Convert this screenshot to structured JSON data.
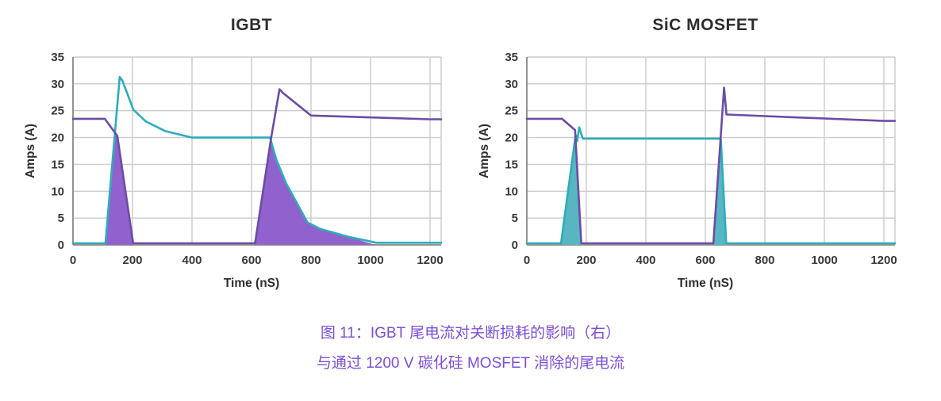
{
  "figure": {
    "background": "#FFFFFF",
    "caption": {
      "line1": "图 11：IGBT 尾电流对关断损耗的影响（右）",
      "line2": "与通过 1200 V 碳化硅 MOSFET 消除的尾电流",
      "color": "#7C4FD2"
    }
  },
  "style": {
    "grid_color": "#CBCBCB",
    "axis_color": "#939393",
    "tick_color": "#383838",
    "title_color": "#2D2D2D",
    "teal_line": "#2EACBA",
    "purple_line": "#6A4DA4",
    "teal_fill": "#58B6C2",
    "purple_fill": "#9162CD"
  },
  "chart_data": [
    {
      "type": "line",
      "title": "IGBT",
      "xlabel": "Time (nS)",
      "ylabel": "Amps (A)",
      "xlim": [
        0,
        1200
      ],
      "ylim": [
        0,
        35
      ],
      "xticks": [
        0,
        200,
        400,
        600,
        800,
        1000,
        1200
      ],
      "yticks": [
        0,
        5,
        10,
        15,
        20,
        25,
        30,
        35
      ],
      "grid": true,
      "legend": "none",
      "series": [
        {
          "name": "switch-current-teal",
          "color": "#2EACBA",
          "points": [
            [
              0,
              0.3
            ],
            [
              109,
              0.3
            ],
            [
              157,
              31.3
            ],
            [
              166,
              30.6
            ],
            [
              203,
              25.2
            ],
            [
              245,
              23
            ],
            [
              310,
              21.2
            ],
            [
              400,
              20
            ],
            [
              662,
              20
            ],
            [
              684,
              15.8
            ],
            [
              716,
              11.5
            ],
            [
              788,
              4.2
            ],
            [
              830,
              3
            ],
            [
              925,
              1.5
            ],
            [
              1020,
              0.4
            ],
            [
              1200,
              0.4
            ]
          ]
        },
        {
          "name": "complementary-current-purple",
          "color": "#6A4DA4",
          "points": [
            [
              0,
              23.5
            ],
            [
              107,
              23.5
            ],
            [
              149,
              20.3
            ],
            [
              202,
              0.3
            ],
            [
              612,
              0.3
            ],
            [
              666,
              20
            ],
            [
              694,
              29
            ],
            [
              706,
              28.3
            ],
            [
              800,
              24.1
            ],
            [
              1200,
              23.4
            ]
          ]
        }
      ],
      "areas": [
        {
          "name": "turn-on-overlap-loss",
          "color": "#9162CD",
          "points": [
            [
              111,
              0
            ],
            [
              140,
              20.3
            ],
            [
              149,
              20.3
            ],
            [
              202,
              0
            ]
          ]
        },
        {
          "name": "turn-off-tail-current-loss",
          "color": "#9162CD",
          "points": [
            [
              612,
              0
            ],
            [
              666,
              20
            ],
            [
              684,
              15.8
            ],
            [
              716,
              11.5
            ],
            [
              788,
              4.2
            ],
            [
              830,
              3
            ],
            [
              925,
              1.5
            ],
            [
              1015,
              0
            ]
          ]
        }
      ]
    },
    {
      "type": "line",
      "title": "SiC MOSFET",
      "xlabel": "Time (nS)",
      "ylabel": "Amps (A)",
      "xlim": [
        0,
        1200
      ],
      "ylim": [
        0,
        35
      ],
      "xticks": [
        0,
        200,
        400,
        600,
        800,
        1000,
        1200
      ],
      "yticks": [
        0,
        5,
        10,
        15,
        20,
        25,
        30,
        35
      ],
      "grid": true,
      "legend": "none",
      "series": [
        {
          "name": "switch-current-teal",
          "color": "#2EACBA",
          "points": [
            [
              0,
              0.3
            ],
            [
              115,
              0.3
            ],
            [
              164,
              20.5
            ],
            [
              169,
              19.3
            ],
            [
              176,
              21.9
            ],
            [
              188,
              19.8
            ],
            [
              644,
              19.8
            ],
            [
              652,
              19.8
            ],
            [
              670,
              0.3
            ],
            [
              1200,
              0.3
            ]
          ]
        },
        {
          "name": "complementary-current-purple",
          "color": "#6A4DA4",
          "points": [
            [
              0,
              23.5
            ],
            [
              118,
              23.5
            ],
            [
              162,
              21.4
            ],
            [
              183,
              0.3
            ],
            [
              627,
              0.3
            ],
            [
              663,
              29.3
            ],
            [
              671,
              24.3
            ],
            [
              1200,
              23.1
            ]
          ]
        }
      ],
      "areas": [
        {
          "name": "turn-on-overlap-loss",
          "color": "#58B6C2",
          "points": [
            [
              117,
              0
            ],
            [
              163,
              20.2
            ],
            [
              183,
              0
            ]
          ]
        },
        {
          "name": "turn-off-overlap-loss",
          "color": "#58B6C2",
          "points": [
            [
              627,
              0
            ],
            [
              651,
              19.8
            ],
            [
              670,
              0
            ]
          ]
        }
      ]
    }
  ]
}
